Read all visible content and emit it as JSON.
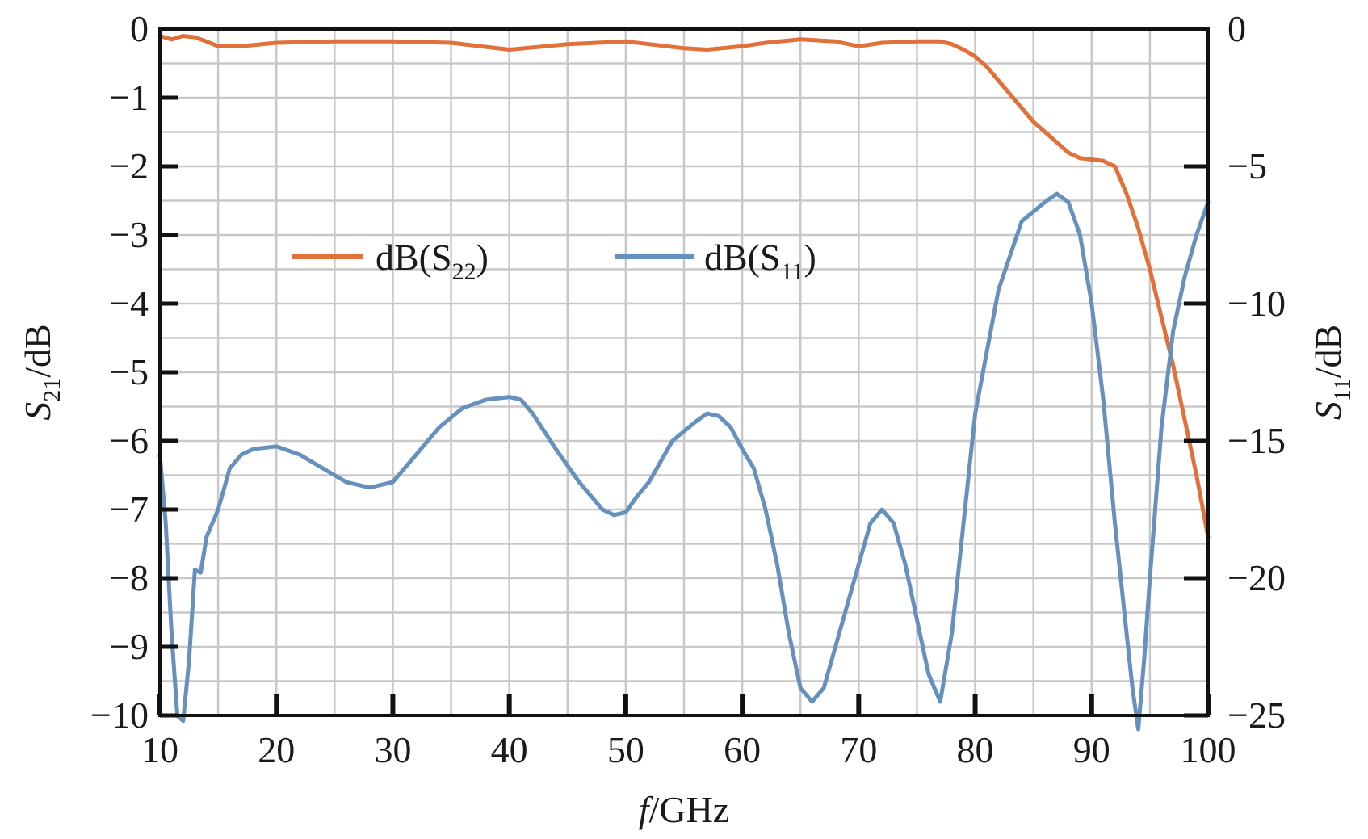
{
  "chart_data": {
    "type": "line",
    "xlabel": {
      "main": "f",
      "rest": "/GHz"
    },
    "ylabel_left": {
      "main": "S",
      "sub": "21",
      "rest": "/dB"
    },
    "ylabel_right": {
      "main": "S",
      "sub": "11",
      "rest": "/dB"
    },
    "xlim": [
      10,
      100
    ],
    "ylim_left": [
      -10,
      0
    ],
    "ylim_right": [
      -25,
      0
    ],
    "x_ticks": [
      10,
      20,
      30,
      40,
      50,
      60,
      70,
      80,
      90,
      100
    ],
    "x_tick_labels": [
      "10",
      "20",
      "30",
      "40",
      "50",
      "60",
      "70",
      "80",
      "90",
      "100"
    ],
    "y_left_ticks": [
      0,
      -1,
      -2,
      -3,
      -4,
      -5,
      -6,
      -7,
      -8,
      -9,
      -10
    ],
    "y_left_tick_labels": [
      "0",
      "−1",
      "−2",
      "−3",
      "−4",
      "−5",
      "−6",
      "−7",
      "−8",
      "−9",
      "−10"
    ],
    "y_right_ticks": [
      0,
      -5,
      -10,
      -15,
      -20,
      -25
    ],
    "y_right_tick_labels": [
      "0",
      "−5",
      "−10",
      "−15",
      "−20",
      "−25"
    ],
    "grid": true,
    "grid_step_x": 5,
    "grid_step_y": 0.5,
    "legend_position": "upper-left",
    "series": [
      {
        "name": "dB(S22)",
        "label_main": "dB(S",
        "label_sub": "22",
        "label_close": ")",
        "axis": "left",
        "color": "#E2703A",
        "x": [
          10,
          11,
          12,
          13,
          14,
          15,
          17,
          20,
          25,
          30,
          35,
          40,
          45,
          50,
          52,
          55,
          57,
          60,
          62,
          65,
          68,
          70,
          72,
          75,
          77,
          78,
          79,
          80,
          81,
          82,
          83,
          84,
          85,
          86,
          87,
          88,
          89,
          90,
          91,
          92,
          93,
          94,
          95,
          96,
          97,
          98,
          99,
          100
        ],
        "y": [
          -0.1,
          -0.15,
          -0.1,
          -0.12,
          -0.18,
          -0.25,
          -0.25,
          -0.2,
          -0.18,
          -0.18,
          -0.2,
          -0.3,
          -0.22,
          -0.18,
          -0.22,
          -0.28,
          -0.3,
          -0.25,
          -0.2,
          -0.15,
          -0.18,
          -0.25,
          -0.2,
          -0.18,
          -0.18,
          -0.22,
          -0.3,
          -0.4,
          -0.55,
          -0.75,
          -0.95,
          -1.15,
          -1.35,
          -1.5,
          -1.65,
          -1.8,
          -1.88,
          -1.9,
          -1.92,
          -2.0,
          -2.4,
          -2.9,
          -3.5,
          -4.2,
          -4.9,
          -5.7,
          -6.5,
          -7.4
        ]
      },
      {
        "name": "dB(S11)",
        "label_main": "dB(S",
        "label_sub": "11",
        "label_close": ")",
        "axis": "right",
        "color": "#6690BD",
        "x": [
          10,
          10.5,
          11,
          11.5,
          12,
          12.5,
          13,
          13.5,
          14,
          15,
          16,
          17,
          18,
          20,
          22,
          24,
          26,
          28,
          30,
          32,
          34,
          36,
          38,
          40,
          41,
          42,
          44,
          46,
          48,
          49,
          50,
          51,
          52,
          54,
          56,
          57,
          58,
          59,
          60,
          61,
          62,
          63,
          64,
          65,
          66,
          67,
          68,
          69,
          70,
          71,
          72,
          73,
          74,
          75,
          76,
          77,
          78,
          79,
          80,
          82,
          84,
          86,
          87,
          88,
          89,
          90,
          91,
          92,
          93,
          93.5,
          94,
          94.5,
          95,
          96,
          97,
          98,
          99,
          100
        ],
        "y": [
          -15.5,
          -18,
          -22,
          -25,
          -25.2,
          -23,
          -19.7,
          -19.8,
          -18.5,
          -17.5,
          -16,
          -15.5,
          -15.3,
          -15.2,
          -15.5,
          -16,
          -16.5,
          -16.7,
          -16.5,
          -15.5,
          -14.5,
          -13.8,
          -13.5,
          -13.4,
          -13.5,
          -14,
          -15.3,
          -16.5,
          -17.5,
          -17.7,
          -17.6,
          -17,
          -16.5,
          -15,
          -14.3,
          -14,
          -14.1,
          -14.5,
          -15.3,
          -16,
          -17.5,
          -19.5,
          -22,
          -24,
          -24.5,
          -24,
          -22.5,
          -21,
          -19.5,
          -18,
          -17.5,
          -18,
          -19.5,
          -21.5,
          -23.5,
          -24.5,
          -22,
          -18,
          -14,
          -9.5,
          -7,
          -6.3,
          -6,
          -6.3,
          -7.5,
          -10,
          -13.5,
          -18,
          -22,
          -24,
          -25.5,
          -23,
          -20,
          -14.5,
          -11,
          -9,
          -7.5,
          -6.3
        ]
      }
    ]
  }
}
